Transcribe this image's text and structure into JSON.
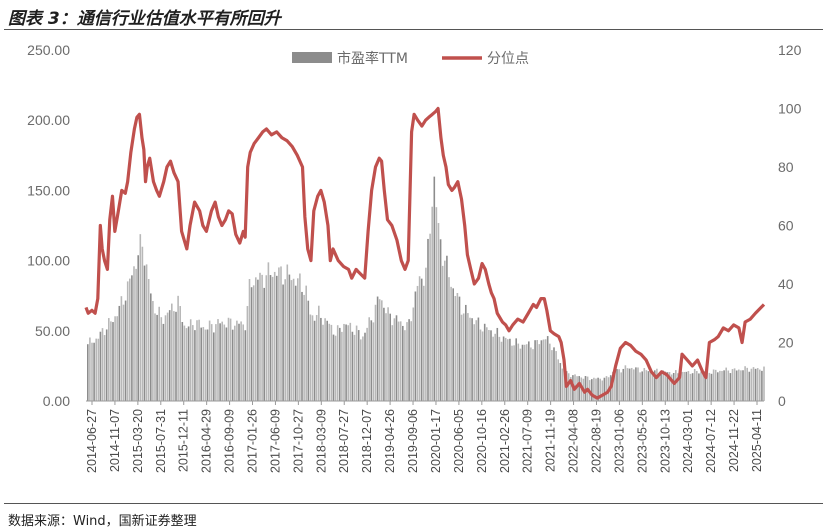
{
  "header": {
    "title": "图表 3：通信行业估值水平有所回升"
  },
  "footer": {
    "source": "数据来源：Wind，国新证券整理"
  },
  "chart_data": {
    "type": "bar+line",
    "title": "图表 3：通信行业估值水平有所回升",
    "legend_position": "top",
    "colors": {
      "bars": "#b8b8b8",
      "bars_dark": "#8c8c8c",
      "line": "#c0504d",
      "axis": "#9a9a9a"
    },
    "left_axis": {
      "ylim": [
        0,
        250
      ],
      "ticks": [
        "0.00",
        "50.00",
        "100.00",
        "150.00",
        "200.00",
        "250.00"
      ]
    },
    "right_axis": {
      "ylim": [
        0,
        120
      ],
      "ticks": [
        "0",
        "20",
        "40",
        "60",
        "80",
        "100",
        "120"
      ]
    },
    "x_start": "2014-06-27",
    "x_end": "2025-06-30",
    "x_tick_labels": [
      "2014-06-27",
      "2014-11-07",
      "2015-03-20",
      "2015-07-31",
      "2015-12-11",
      "2016-04-29",
      "2016-09-09",
      "2017-01-26",
      "2017-06-09",
      "2017-10-27",
      "2018-03-09",
      "2018-07-27",
      "2018-12-07",
      "2019-04-26",
      "2019-09-06",
      "2020-01-17",
      "2020-06-05",
      "2020-10-16",
      "2021-02-26",
      "2021-07-09",
      "2021-11-19",
      "2022-04-08",
      "2022-08-19",
      "2023-01-06",
      "2023-05-26",
      "2023-10-13",
      "2024-03-01",
      "2024-07-12",
      "2024-11-22",
      "2025-04-11"
    ],
    "series": [
      {
        "name": "市盈率TTM",
        "axis": "left",
        "kind": "bar",
        "points": [
          [
            "2014-06-27",
            40
          ],
          [
            "2014-09-01",
            45
          ],
          [
            "2014-10-15",
            52
          ],
          [
            "2014-12-01",
            58
          ],
          [
            "2015-01-15",
            68
          ],
          [
            "2015-03-01",
            82
          ],
          [
            "2015-04-15",
            100
          ],
          [
            "2015-05-25",
            113
          ],
          [
            "2015-06-25",
            88
          ],
          [
            "2015-07-20",
            70
          ],
          [
            "2015-09-15",
            58
          ],
          [
            "2015-11-15",
            66
          ],
          [
            "2015-12-20",
            70
          ],
          [
            "2016-02-01",
            52
          ],
          [
            "2016-04-01",
            56
          ],
          [
            "2016-06-01",
            52
          ],
          [
            "2016-09-01",
            56
          ],
          [
            "2016-12-01",
            55
          ],
          [
            "2017-01-26",
            55
          ],
          [
            "2017-02-20",
            85
          ],
          [
            "2017-05-01",
            88
          ],
          [
            "2017-07-01",
            92
          ],
          [
            "2017-10-01",
            90
          ],
          [
            "2017-12-01",
            85
          ],
          [
            "2018-01-15",
            80
          ],
          [
            "2018-02-15",
            60
          ],
          [
            "2018-04-01",
            62
          ],
          [
            "2018-06-01",
            55
          ],
          [
            "2018-07-15",
            48
          ],
          [
            "2018-09-01",
            55
          ],
          [
            "2018-11-15",
            50
          ],
          [
            "2018-12-15",
            45
          ],
          [
            "2019-02-15",
            60
          ],
          [
            "2019-04-01",
            75
          ],
          [
            "2019-05-15",
            62
          ],
          [
            "2019-08-01",
            56
          ],
          [
            "2019-09-15",
            52
          ],
          [
            "2019-11-15",
            85
          ],
          [
            "2020-01-01",
            92
          ],
          [
            "2020-02-15",
            160
          ],
          [
            "2020-03-15",
            118
          ],
          [
            "2020-04-15",
            102
          ],
          [
            "2020-06-01",
            82
          ],
          [
            "2020-08-01",
            66
          ],
          [
            "2020-11-01",
            55
          ],
          [
            "2021-01-15",
            50
          ],
          [
            "2021-04-01",
            45
          ],
          [
            "2021-07-01",
            40
          ],
          [
            "2021-10-01",
            40
          ],
          [
            "2021-12-01",
            45
          ],
          [
            "2022-01-15",
            40
          ],
          [
            "2022-04-01",
            20
          ],
          [
            "2022-06-01",
            18
          ],
          [
            "2022-09-01",
            16
          ],
          [
            "2022-12-01",
            16
          ],
          [
            "2023-01-15",
            21
          ],
          [
            "2023-04-15",
            24
          ],
          [
            "2023-07-01",
            22
          ],
          [
            "2023-10-15",
            21
          ],
          [
            "2024-01-15",
            20
          ],
          [
            "2024-06-01",
            21
          ],
          [
            "2024-09-01",
            21
          ],
          [
            "2024-11-01",
            22
          ],
          [
            "2025-01-01",
            22
          ],
          [
            "2025-03-15",
            23
          ],
          [
            "2025-06-30",
            23
          ]
        ]
      },
      {
        "name": "分位点",
        "axis": "right",
        "kind": "line",
        "points": [
          [
            "2014-06-27",
            32
          ],
          [
            "2014-07-10",
            30
          ],
          [
            "2014-08-01",
            31
          ],
          [
            "2014-08-20",
            30
          ],
          [
            "2014-09-05",
            35
          ],
          [
            "2014-09-20",
            60
          ],
          [
            "2014-10-01",
            52
          ],
          [
            "2014-10-15",
            48
          ],
          [
            "2014-11-01",
            45
          ],
          [
            "2014-11-15",
            62
          ],
          [
            "2014-12-01",
            70
          ],
          [
            "2014-12-15",
            58
          ],
          [
            "2015-01-05",
            65
          ],
          [
            "2015-01-25",
            72
          ],
          [
            "2015-02-15",
            71
          ],
          [
            "2015-03-01",
            75
          ],
          [
            "2015-03-20",
            85
          ],
          [
            "2015-04-10",
            93
          ],
          [
            "2015-04-25",
            97
          ],
          [
            "2015-05-10",
            98
          ],
          [
            "2015-05-25",
            90
          ],
          [
            "2015-06-05",
            86
          ],
          [
            "2015-06-15",
            75
          ],
          [
            "2015-06-25",
            80
          ],
          [
            "2015-07-10",
            83
          ],
          [
            "2015-08-01",
            75
          ],
          [
            "2015-08-20",
            72
          ],
          [
            "2015-09-05",
            70
          ],
          [
            "2015-10-01",
            75
          ],
          [
            "2015-10-20",
            80
          ],
          [
            "2015-11-10",
            82
          ],
          [
            "2015-12-01",
            78
          ],
          [
            "2015-12-25",
            75
          ],
          [
            "2016-01-15",
            58
          ],
          [
            "2016-02-15",
            52
          ],
          [
            "2016-03-05",
            60
          ],
          [
            "2016-04-01",
            68
          ],
          [
            "2016-05-01",
            65
          ],
          [
            "2016-05-20",
            60
          ],
          [
            "2016-06-10",
            58
          ],
          [
            "2016-07-10",
            65
          ],
          [
            "2016-08-01",
            68
          ],
          [
            "2016-08-20",
            63
          ],
          [
            "2016-09-10",
            60
          ],
          [
            "2016-10-01",
            62
          ],
          [
            "2016-10-20",
            65
          ],
          [
            "2016-11-10",
            64
          ],
          [
            "2016-12-01",
            57
          ],
          [
            "2016-12-25",
            54
          ],
          [
            "2017-01-15",
            58
          ],
          [
            "2017-01-26",
            56
          ],
          [
            "2017-02-10",
            80
          ],
          [
            "2017-02-25",
            85
          ],
          [
            "2017-03-20",
            88
          ],
          [
            "2017-04-15",
            90
          ],
          [
            "2017-05-10",
            92
          ],
          [
            "2017-06-01",
            93
          ],
          [
            "2017-07-01",
            91
          ],
          [
            "2017-08-01",
            92
          ],
          [
            "2017-09-01",
            90
          ],
          [
            "2017-10-01",
            89
          ],
          [
            "2017-11-01",
            87
          ],
          [
            "2017-12-01",
            84
          ],
          [
            "2018-01-01",
            80
          ],
          [
            "2018-01-15",
            63
          ],
          [
            "2018-02-01",
            52
          ],
          [
            "2018-02-20",
            48
          ],
          [
            "2018-03-09",
            65
          ],
          [
            "2018-04-01",
            70
          ],
          [
            "2018-04-20",
            72
          ],
          [
            "2018-05-10",
            68
          ],
          [
            "2018-06-01",
            60
          ],
          [
            "2018-06-15",
            48
          ],
          [
            "2018-07-01",
            52
          ],
          [
            "2018-08-01",
            48
          ],
          [
            "2018-09-01",
            46
          ],
          [
            "2018-10-01",
            45
          ],
          [
            "2018-10-20",
            42
          ],
          [
            "2018-11-15",
            45
          ],
          [
            "2018-12-01",
            44
          ],
          [
            "2019-01-05",
            42
          ],
          [
            "2019-01-25",
            58
          ],
          [
            "2019-02-15",
            72
          ],
          [
            "2019-03-10",
            80
          ],
          [
            "2019-04-01",
            83
          ],
          [
            "2019-04-15",
            82
          ],
          [
            "2019-05-01",
            72
          ],
          [
            "2019-05-20",
            62
          ],
          [
            "2019-06-15",
            60
          ],
          [
            "2019-07-15",
            55
          ],
          [
            "2019-08-10",
            48
          ],
          [
            "2019-09-01",
            45
          ],
          [
            "2019-09-20",
            48
          ],
          [
            "2019-10-10",
            92
          ],
          [
            "2019-10-25",
            98
          ],
          [
            "2019-11-15",
            96
          ],
          [
            "2019-12-10",
            94
          ],
          [
            "2020-01-01",
            96
          ],
          [
            "2020-01-20",
            97
          ],
          [
            "2020-02-10",
            98
          ],
          [
            "2020-03-01",
            99
          ],
          [
            "2020-03-15",
            100
          ],
          [
            "2020-04-01",
            90
          ],
          [
            "2020-04-15",
            84
          ],
          [
            "2020-05-01",
            80
          ],
          [
            "2020-05-15",
            74
          ],
          [
            "2020-06-05",
            72
          ],
          [
            "2020-06-20",
            73
          ],
          [
            "2020-07-10",
            75
          ],
          [
            "2020-08-01",
            69
          ],
          [
            "2020-08-20",
            60
          ],
          [
            "2020-09-05",
            50
          ],
          [
            "2020-09-25",
            45
          ],
          [
            "2020-10-16",
            40
          ],
          [
            "2020-11-10",
            42
          ],
          [
            "2020-12-01",
            47
          ],
          [
            "2020-12-20",
            45
          ],
          [
            "2021-01-10",
            40
          ],
          [
            "2021-01-25",
            37
          ],
          [
            "2021-02-10",
            35
          ],
          [
            "2021-03-01",
            30
          ],
          [
            "2021-04-01",
            27
          ],
          [
            "2021-04-20",
            26
          ],
          [
            "2021-05-10",
            24
          ],
          [
            "2021-06-01",
            26
          ],
          [
            "2021-07-01",
            28
          ],
          [
            "2021-08-01",
            27
          ],
          [
            "2021-09-01",
            30
          ],
          [
            "2021-10-01",
            33
          ],
          [
            "2021-10-20",
            32
          ],
          [
            "2021-11-15",
            35
          ],
          [
            "2021-12-05",
            35
          ],
          [
            "2021-12-20",
            31
          ],
          [
            "2022-01-10",
            24
          ],
          [
            "2022-02-01",
            23
          ],
          [
            "2022-03-01",
            22
          ],
          [
            "2022-03-15",
            20
          ],
          [
            "2022-04-01",
            14
          ],
          [
            "2022-04-15",
            5
          ],
          [
            "2022-05-10",
            7
          ],
          [
            "2022-06-01",
            4
          ],
          [
            "2022-07-01",
            6
          ],
          [
            "2022-08-01",
            3
          ],
          [
            "2022-08-19",
            4
          ],
          [
            "2022-09-15",
            2
          ],
          [
            "2022-10-15",
            1
          ],
          [
            "2022-11-15",
            2
          ],
          [
            "2022-12-15",
            3
          ],
          [
            "2023-01-06",
            5
          ],
          [
            "2023-02-01",
            12
          ],
          [
            "2023-03-01",
            18
          ],
          [
            "2023-04-01",
            20
          ],
          [
            "2023-05-01",
            19
          ],
          [
            "2023-06-01",
            17
          ],
          [
            "2023-07-01",
            16
          ],
          [
            "2023-08-01",
            14
          ],
          [
            "2023-09-01",
            10
          ],
          [
            "2023-10-01",
            8
          ],
          [
            "2023-11-01",
            10
          ],
          [
            "2023-12-01",
            9
          ],
          [
            "2024-01-15",
            6
          ],
          [
            "2024-02-15",
            8
          ],
          [
            "2024-03-01",
            16
          ],
          [
            "2024-04-01",
            14
          ],
          [
            "2024-05-01",
            12
          ],
          [
            "2024-06-01",
            14
          ],
          [
            "2024-07-01",
            10
          ],
          [
            "2024-07-20",
            8
          ],
          [
            "2024-08-10",
            20
          ],
          [
            "2024-09-10",
            21
          ],
          [
            "2024-10-01",
            22
          ],
          [
            "2024-11-01",
            25
          ],
          [
            "2024-12-01",
            24
          ],
          [
            "2025-01-01",
            26
          ],
          [
            "2025-02-01",
            25
          ],
          [
            "2025-02-20",
            20
          ],
          [
            "2025-03-10",
            27
          ],
          [
            "2025-04-10",
            28
          ],
          [
            "2025-05-10",
            30
          ],
          [
            "2025-06-30",
            33
          ]
        ]
      }
    ]
  }
}
